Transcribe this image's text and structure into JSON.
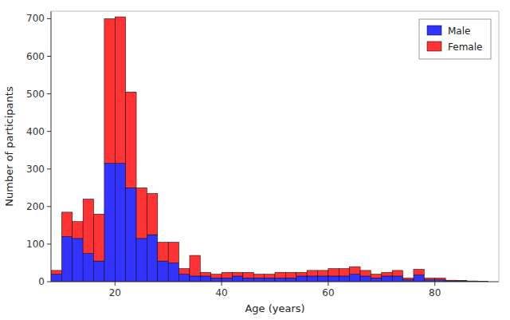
{
  "chart_data": {
    "type": "histogram",
    "x_label": "Age (years)",
    "y_label": "Number of participants",
    "bins": [
      8,
      10,
      12,
      14,
      16,
      18,
      20,
      22,
      24,
      26,
      28,
      30,
      32,
      34,
      36,
      38,
      40,
      42,
      44,
      46,
      48,
      50,
      52,
      54,
      56,
      58,
      60,
      62,
      64,
      66,
      68,
      70,
      72,
      74,
      76,
      78,
      80,
      82,
      84,
      86,
      88,
      90
    ],
    "series": [
      {
        "name": "Male",
        "color": "#3333ff",
        "values": [
          20,
          120,
          115,
          75,
          55,
          315,
          315,
          250,
          115,
          125,
          55,
          50,
          20,
          15,
          15,
          10,
          10,
          15,
          10,
          10,
          10,
          10,
          10,
          15,
          15,
          15,
          15,
          15,
          20,
          15,
          10,
          15,
          15,
          5,
          18,
          5,
          5,
          2,
          2,
          1,
          1
        ]
      },
      {
        "name": "Female",
        "color": "#ff3333",
        "values": [
          10,
          65,
          45,
          145,
          125,
          385,
          390,
          255,
          135,
          110,
          50,
          55,
          15,
          55,
          10,
          10,
          15,
          10,
          15,
          10,
          10,
          15,
          15,
          10,
          15,
          15,
          20,
          20,
          20,
          15,
          10,
          10,
          15,
          5,
          15,
          5,
          5,
          2,
          1,
          1,
          0
        ]
      }
    ],
    "stacked": true,
    "xlim": [
      8,
      92
    ],
    "xticks": [
      20,
      40,
      60,
      80
    ],
    "ylim": [
      0,
      720
    ],
    "yticks": [
      0,
      100,
      200,
      300,
      400,
      500,
      600,
      700
    ],
    "grid": false,
    "legend": "upper right"
  }
}
